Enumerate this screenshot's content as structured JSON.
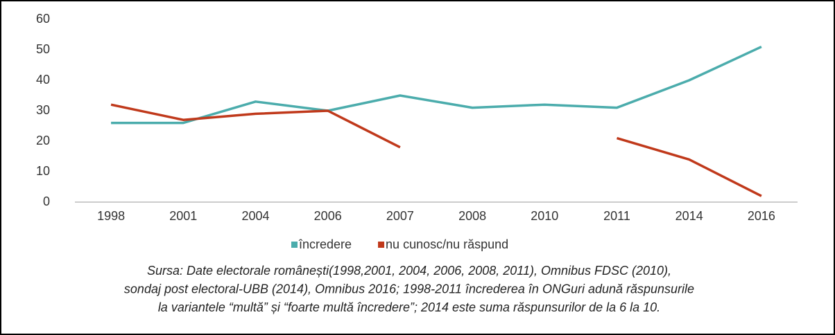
{
  "chart_data": {
    "type": "line",
    "categories": [
      "1998",
      "2001",
      "2004",
      "2006",
      "2007",
      "2008",
      "2010",
      "2011",
      "2014",
      "2016"
    ],
    "series": [
      {
        "name": "încredere",
        "color": "#4bacac",
        "values": [
          26,
          26,
          33,
          30,
          35,
          31,
          32,
          31,
          40,
          51
        ]
      },
      {
        "name": "nu cunosc/nu răspund",
        "color": "#c0391b",
        "values": [
          32,
          27,
          29,
          30,
          18,
          null,
          null,
          21,
          14,
          2
        ]
      }
    ],
    "ylim": [
      0,
      60
    ],
    "yticks": [
      0,
      10,
      20,
      30,
      40,
      50,
      60
    ],
    "grid": false,
    "legend": "bottom",
    "caption": [
      "Sursa: Date electorale românești(1998,2001, 2004, 2006, 2008, 2011), Omnibus FDSC (2010),",
      "sondaj post electoral-UBB (2014), Omnibus 2016; 1998-2011 încrederea în ONGuri adună răspunsurile",
      "la variantele “multă” și “foarte multă încredere”; 2014 este suma răspunsurilor de la 6 la 10."
    ]
  }
}
